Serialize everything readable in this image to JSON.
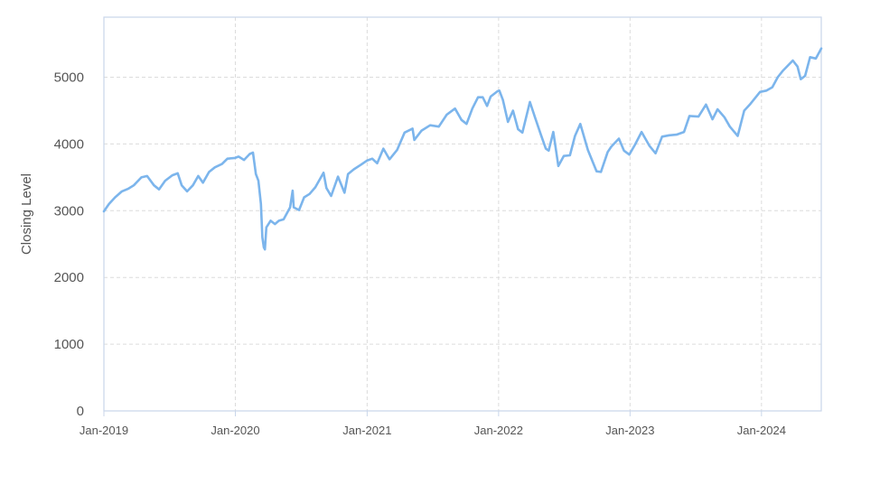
{
  "chart_data": {
    "type": "line",
    "title": "",
    "xlabel": "",
    "ylabel": "Closing Level",
    "ylim": [
      0,
      5900
    ],
    "xlim": [
      "2019-01-01",
      "2024-06-15"
    ],
    "yticks": [
      0,
      1000,
      2000,
      3000,
      4000,
      5000
    ],
    "xticks": [
      {
        "date": "2019-01-01",
        "label": "Jan-2019"
      },
      {
        "date": "2020-01-01",
        "label": "Jan-2020"
      },
      {
        "date": "2021-01-01",
        "label": "Jan-2021"
      },
      {
        "date": "2022-01-01",
        "label": "Jan-2022"
      },
      {
        "date": "2023-01-01",
        "label": "Jan-2023"
      },
      {
        "date": "2024-01-01",
        "label": "Jan-2024"
      }
    ],
    "grid": true,
    "legend": "none",
    "line_color": "#7cb5ec",
    "series": [
      {
        "points": [
          [
            "2019-01-01",
            2990
          ],
          [
            "2019-01-15",
            3100
          ],
          [
            "2019-02-01",
            3200
          ],
          [
            "2019-02-20",
            3290
          ],
          [
            "2019-03-10",
            3330
          ],
          [
            "2019-03-25",
            3380
          ],
          [
            "2019-04-15",
            3500
          ],
          [
            "2019-05-01",
            3520
          ],
          [
            "2019-05-20",
            3380
          ],
          [
            "2019-06-03",
            3320
          ],
          [
            "2019-06-20",
            3450
          ],
          [
            "2019-07-10",
            3530
          ],
          [
            "2019-07-25",
            3560
          ],
          [
            "2019-08-05",
            3380
          ],
          [
            "2019-08-20",
            3290
          ],
          [
            "2019-09-05",
            3380
          ],
          [
            "2019-09-20",
            3520
          ],
          [
            "2019-10-03",
            3420
          ],
          [
            "2019-10-20",
            3580
          ],
          [
            "2019-11-05",
            3650
          ],
          [
            "2019-11-25",
            3700
          ],
          [
            "2019-12-10",
            3780
          ],
          [
            "2019-12-31",
            3790
          ],
          [
            "2020-01-10",
            3810
          ],
          [
            "2020-01-25",
            3760
          ],
          [
            "2020-02-10",
            3850
          ],
          [
            "2020-02-19",
            3870
          ],
          [
            "2020-02-27",
            3550
          ],
          [
            "2020-03-05",
            3450
          ],
          [
            "2020-03-12",
            3100
          ],
          [
            "2020-03-16",
            2600
          ],
          [
            "2020-03-20",
            2450
          ],
          [
            "2020-03-23",
            2420
          ],
          [
            "2020-03-27",
            2750
          ],
          [
            "2020-04-08",
            2850
          ],
          [
            "2020-04-20",
            2800
          ],
          [
            "2020-05-01",
            2850
          ],
          [
            "2020-05-14",
            2870
          ],
          [
            "2020-06-01",
            3050
          ],
          [
            "2020-06-08",
            3300
          ],
          [
            "2020-06-11",
            3050
          ],
          [
            "2020-06-26",
            3010
          ],
          [
            "2020-07-10",
            3200
          ],
          [
            "2020-07-25",
            3250
          ],
          [
            "2020-08-10",
            3350
          ],
          [
            "2020-09-02",
            3570
          ],
          [
            "2020-09-10",
            3340
          ],
          [
            "2020-09-23",
            3220
          ],
          [
            "2020-10-12",
            3510
          ],
          [
            "2020-10-30",
            3270
          ],
          [
            "2020-11-09",
            3550
          ],
          [
            "2020-11-25",
            3620
          ],
          [
            "2020-12-15",
            3690
          ],
          [
            "2020-12-31",
            3750
          ],
          [
            "2021-01-15",
            3780
          ],
          [
            "2021-01-29",
            3710
          ],
          [
            "2021-02-15",
            3930
          ],
          [
            "2021-03-04",
            3770
          ],
          [
            "2021-03-25",
            3910
          ],
          [
            "2021-04-15",
            4170
          ],
          [
            "2021-05-07",
            4230
          ],
          [
            "2021-05-12",
            4060
          ],
          [
            "2021-06-01",
            4200
          ],
          [
            "2021-06-25",
            4280
          ],
          [
            "2021-07-19",
            4260
          ],
          [
            "2021-08-10",
            4440
          ],
          [
            "2021-09-02",
            4530
          ],
          [
            "2021-09-20",
            4360
          ],
          [
            "2021-10-04",
            4300
          ],
          [
            "2021-10-20",
            4530
          ],
          [
            "2021-11-05",
            4700
          ],
          [
            "2021-11-18",
            4700
          ],
          [
            "2021-11-30",
            4570
          ],
          [
            "2021-12-10",
            4710
          ],
          [
            "2021-12-29",
            4790
          ],
          [
            "2022-01-03",
            4800
          ],
          [
            "2022-01-13",
            4660
          ],
          [
            "2022-01-27",
            4330
          ],
          [
            "2022-02-10",
            4500
          ],
          [
            "2022-02-24",
            4220
          ],
          [
            "2022-03-08",
            4170
          ],
          [
            "2022-03-29",
            4630
          ],
          [
            "2022-04-12",
            4400
          ],
          [
            "2022-04-29",
            4130
          ],
          [
            "2022-05-12",
            3930
          ],
          [
            "2022-05-20",
            3900
          ],
          [
            "2022-06-02",
            4180
          ],
          [
            "2022-06-16",
            3670
          ],
          [
            "2022-07-01",
            3820
          ],
          [
            "2022-07-18",
            3830
          ],
          [
            "2022-08-01",
            4120
          ],
          [
            "2022-08-16",
            4300
          ],
          [
            "2022-09-06",
            3910
          ],
          [
            "2022-09-30",
            3590
          ],
          [
            "2022-10-12",
            3580
          ],
          [
            "2022-10-31",
            3880
          ],
          [
            "2022-11-10",
            3960
          ],
          [
            "2022-12-01",
            4080
          ],
          [
            "2022-12-15",
            3900
          ],
          [
            "2022-12-30",
            3840
          ],
          [
            "2023-01-15",
            3990
          ],
          [
            "2023-02-02",
            4180
          ],
          [
            "2023-02-24",
            3970
          ],
          [
            "2023-03-13",
            3860
          ],
          [
            "2023-03-31",
            4110
          ],
          [
            "2023-04-20",
            4130
          ],
          [
            "2023-05-10",
            4140
          ],
          [
            "2023-05-31",
            4180
          ],
          [
            "2023-06-15",
            4420
          ],
          [
            "2023-07-10",
            4410
          ],
          [
            "2023-07-31",
            4590
          ],
          [
            "2023-08-18",
            4370
          ],
          [
            "2023-09-01",
            4520
          ],
          [
            "2023-09-20",
            4400
          ],
          [
            "2023-10-05",
            4260
          ],
          [
            "2023-10-27",
            4120
          ],
          [
            "2023-11-14",
            4500
          ],
          [
            "2023-12-01",
            4600
          ],
          [
            "2023-12-28",
            4780
          ],
          [
            "2024-01-15",
            4800
          ],
          [
            "2024-01-31",
            4850
          ],
          [
            "2024-02-15",
            5000
          ],
          [
            "2024-03-01",
            5100
          ],
          [
            "2024-03-28",
            5250
          ],
          [
            "2024-04-10",
            5160
          ],
          [
            "2024-04-19",
            4970
          ],
          [
            "2024-05-01",
            5020
          ],
          [
            "2024-05-15",
            5300
          ],
          [
            "2024-05-31",
            5280
          ],
          [
            "2024-06-15",
            5430
          ]
        ]
      }
    ]
  }
}
